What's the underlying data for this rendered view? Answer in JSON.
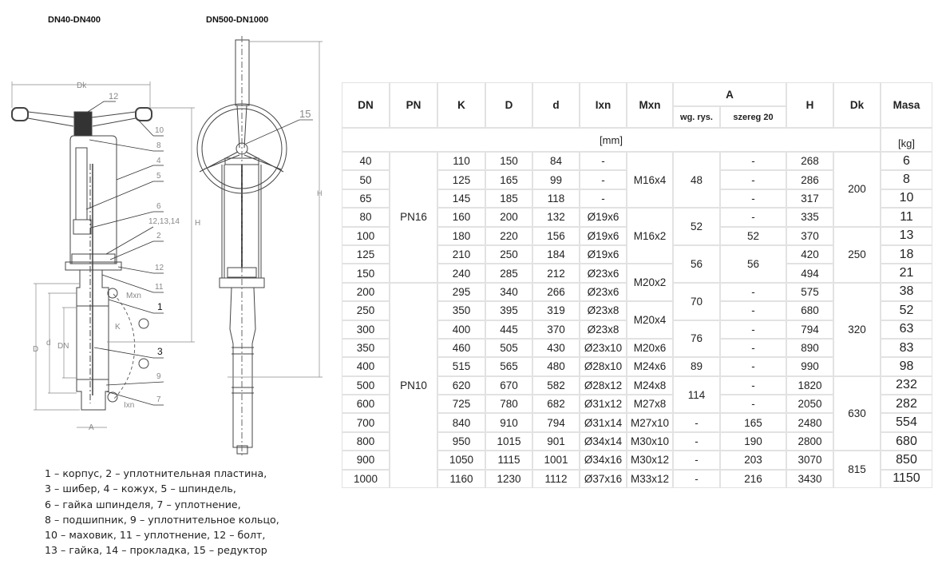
{
  "titles": {
    "left": "DN40-DN400",
    "right": "DN500-DN1000"
  },
  "drawing_labels": {
    "left": {
      "dk": "Dk",
      "h": "H",
      "d_outer": "D",
      "d_inner": "d",
      "dn": "DN",
      "a": "A",
      "k": "K",
      "mxn": "Mxn",
      "ixn": "Ixn",
      "parts": [
        "12",
        "10",
        "8",
        "4",
        "5",
        "6",
        "12,13,14",
        "2",
        "12",
        "11",
        "1",
        "3",
        "9",
        "7"
      ]
    },
    "right": {
      "h": "H",
      "part": "15"
    }
  },
  "legend": [
    "1 – корпус, 2 – уплотнительная пластина,",
    "3 – шибер, 4 – кожух, 5 – шпиндель,",
    "6 – гайка шпинделя, 7 – уплотнение,",
    "8 – подшипник, 9 – уплотнительное кольцо,",
    "10 – маховик, 11 – уплотнение, 12 – болт,",
    "13 – гайка, 14 – прокладка, 15 – редуктор"
  ],
  "table": {
    "headers": {
      "dn": "DN",
      "pn": "PN",
      "k": "K",
      "d_outer": "D",
      "d": "d",
      "ixn": "Ixn",
      "mxn": "Mxn",
      "a": "A",
      "a_wg": "wg. rys.",
      "a_szereg": "szereg 20",
      "h": "H",
      "dk": "Dk",
      "masa": "Masa"
    },
    "units": {
      "mm": "[mm]",
      "kg": "[kg]"
    },
    "rows": [
      [
        "40",
        "PN16",
        "110",
        "150",
        "84",
        "-",
        "M16x4",
        "48",
        "-",
        "268",
        "200",
        "6"
      ],
      [
        "50",
        null,
        "125",
        "165",
        "99",
        "-",
        null,
        null,
        "-",
        "286",
        null,
        "8"
      ],
      [
        "65",
        null,
        "145",
        "185",
        "118",
        "-",
        null,
        null,
        "-",
        "317",
        null,
        "10"
      ],
      [
        "80",
        null,
        "160",
        "200",
        "132",
        "Ø19x6",
        "M16x2",
        "52",
        "-",
        "335",
        null,
        "11"
      ],
      [
        "100",
        null,
        "180",
        "220",
        "156",
        "Ø19x6",
        null,
        null,
        "52",
        "370",
        "250",
        "13"
      ],
      [
        "125",
        null,
        "210",
        "250",
        "184",
        "Ø19x6",
        null,
        "56",
        "56",
        "420",
        null,
        "18"
      ],
      [
        "150",
        null,
        "240",
        "285",
        "212",
        "Ø23x6",
        "M20x2",
        null,
        null,
        "494",
        null,
        "21"
      ],
      [
        "200",
        "PN10",
        "295",
        "340",
        "266",
        "Ø23x6",
        null,
        "70",
        "-",
        "575",
        "320",
        "38"
      ],
      [
        "250",
        null,
        "350",
        "395",
        "319",
        "Ø23x8",
        "M20x4",
        null,
        "-",
        "680",
        null,
        "52"
      ],
      [
        "300",
        null,
        "400",
        "445",
        "370",
        "Ø23x8",
        null,
        "76",
        "-",
        "794",
        null,
        "63"
      ],
      [
        "350",
        null,
        "460",
        "505",
        "430",
        "Ø23x10",
        "M20x6",
        null,
        "-",
        "890",
        null,
        "83"
      ],
      [
        "400",
        null,
        "515",
        "565",
        "480",
        "Ø28x10",
        "M24x6",
        "89",
        "-",
        "990",
        null,
        "98"
      ],
      [
        "500",
        null,
        "620",
        "670",
        "582",
        "Ø28x12",
        "M24x8",
        "114",
        "-",
        "1820",
        "630",
        "232"
      ],
      [
        "600",
        null,
        "725",
        "780",
        "682",
        "Ø31x12",
        "M27x8",
        null,
        "-",
        "2050",
        null,
        "282"
      ],
      [
        "700",
        null,
        "840",
        "910",
        "794",
        "Ø31x14",
        "M27x10",
        "-",
        "165",
        "2480",
        null,
        "554"
      ],
      [
        "800",
        null,
        "950",
        "1015",
        "901",
        "Ø34x14",
        "M30x10",
        "-",
        "190",
        "2800",
        null,
        "680"
      ],
      [
        "900",
        null,
        "1050",
        "1115",
        "1001",
        "Ø34x16",
        "M30x12",
        "-",
        "203",
        "3070",
        "815",
        "850"
      ],
      [
        "1000",
        null,
        "1160",
        "1230",
        "1112",
        "Ø37x16",
        "M33x12",
        "-",
        "216",
        "3430",
        null,
        "1150"
      ]
    ]
  }
}
